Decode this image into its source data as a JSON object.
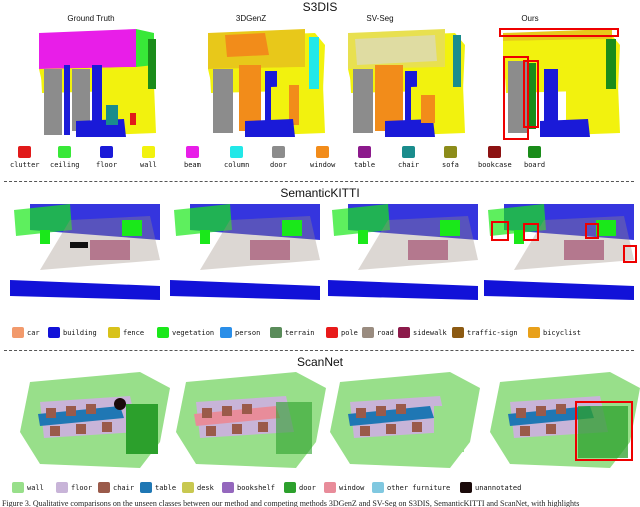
{
  "s3dis": {
    "title": "S3DIS",
    "methods": [
      "Ground Truth",
      "3DGenZ",
      "SV-Seg",
      "Ours"
    ],
    "legend": [
      {
        "label": "clutter",
        "color": "#e11a1a"
      },
      {
        "label": "ceiling",
        "color": "#38e838"
      },
      {
        "label": "floor",
        "color": "#1a1ad8"
      },
      {
        "label": "wall",
        "color": "#f2f20e"
      },
      {
        "label": "beam",
        "color": "#e81ee8"
      },
      {
        "label": "column",
        "color": "#22e8e8"
      },
      {
        "label": "door",
        "color": "#8c8c8c"
      },
      {
        "label": "window",
        "color": "#f28c1a"
      },
      {
        "label": "table",
        "color": "#8c1a8c"
      },
      {
        "label": "chair",
        "color": "#1a8c8c"
      },
      {
        "label": "sofa",
        "color": "#8c8c1a"
      },
      {
        "label": "bookcase",
        "color": "#8c1212"
      },
      {
        "label": "board",
        "color": "#1a8c1a"
      }
    ]
  },
  "semantickitti": {
    "title": "SemanticKITTI",
    "legend": [
      {
        "label": "car",
        "color": "#f29a6c"
      },
      {
        "label": "building",
        "color": "#1212d8"
      },
      {
        "label": "fence",
        "color": "#d8c21a"
      },
      {
        "label": "vegetation",
        "color": "#1ae81a"
      },
      {
        "label": "person",
        "color": "#2a8ee8"
      },
      {
        "label": "terrain",
        "color": "#5a8c5a"
      },
      {
        "label": "pole",
        "color": "#e81a1a"
      },
      {
        "label": "road",
        "color": "#9a8c80"
      },
      {
        "label": "sidewalk",
        "color": "#8c1a4a"
      },
      {
        "label": "traffic-sign",
        "color": "#8c5a12"
      },
      {
        "label": "bicyclist",
        "color": "#e8a01a"
      }
    ]
  },
  "scannet": {
    "title": "ScanNet",
    "legend": [
      {
        "label": "wall",
        "color": "#98df8a"
      },
      {
        "label": "floor",
        "color": "#c8b4d8"
      },
      {
        "label": "chair",
        "color": "#9a5a4a"
      },
      {
        "label": "table",
        "color": "#1f77b4"
      },
      {
        "label": "desk",
        "color": "#c8c850"
      },
      {
        "label": "bookshelf",
        "color": "#9467bd"
      },
      {
        "label": "door",
        "color": "#2ca02c"
      },
      {
        "label": "window",
        "color": "#e88c9a"
      },
      {
        "label": "other furniture",
        "color": "#80c8e0"
      },
      {
        "label": "unannotated",
        "color": "#1a0a0a"
      }
    ]
  },
  "caption": "Figure 3. Qualitative comparisons on the unseen classes between our method and competing methods 3DGenZ and SV-Seg on S3DIS, SemanticKITTI and ScanNet, with highlights"
}
